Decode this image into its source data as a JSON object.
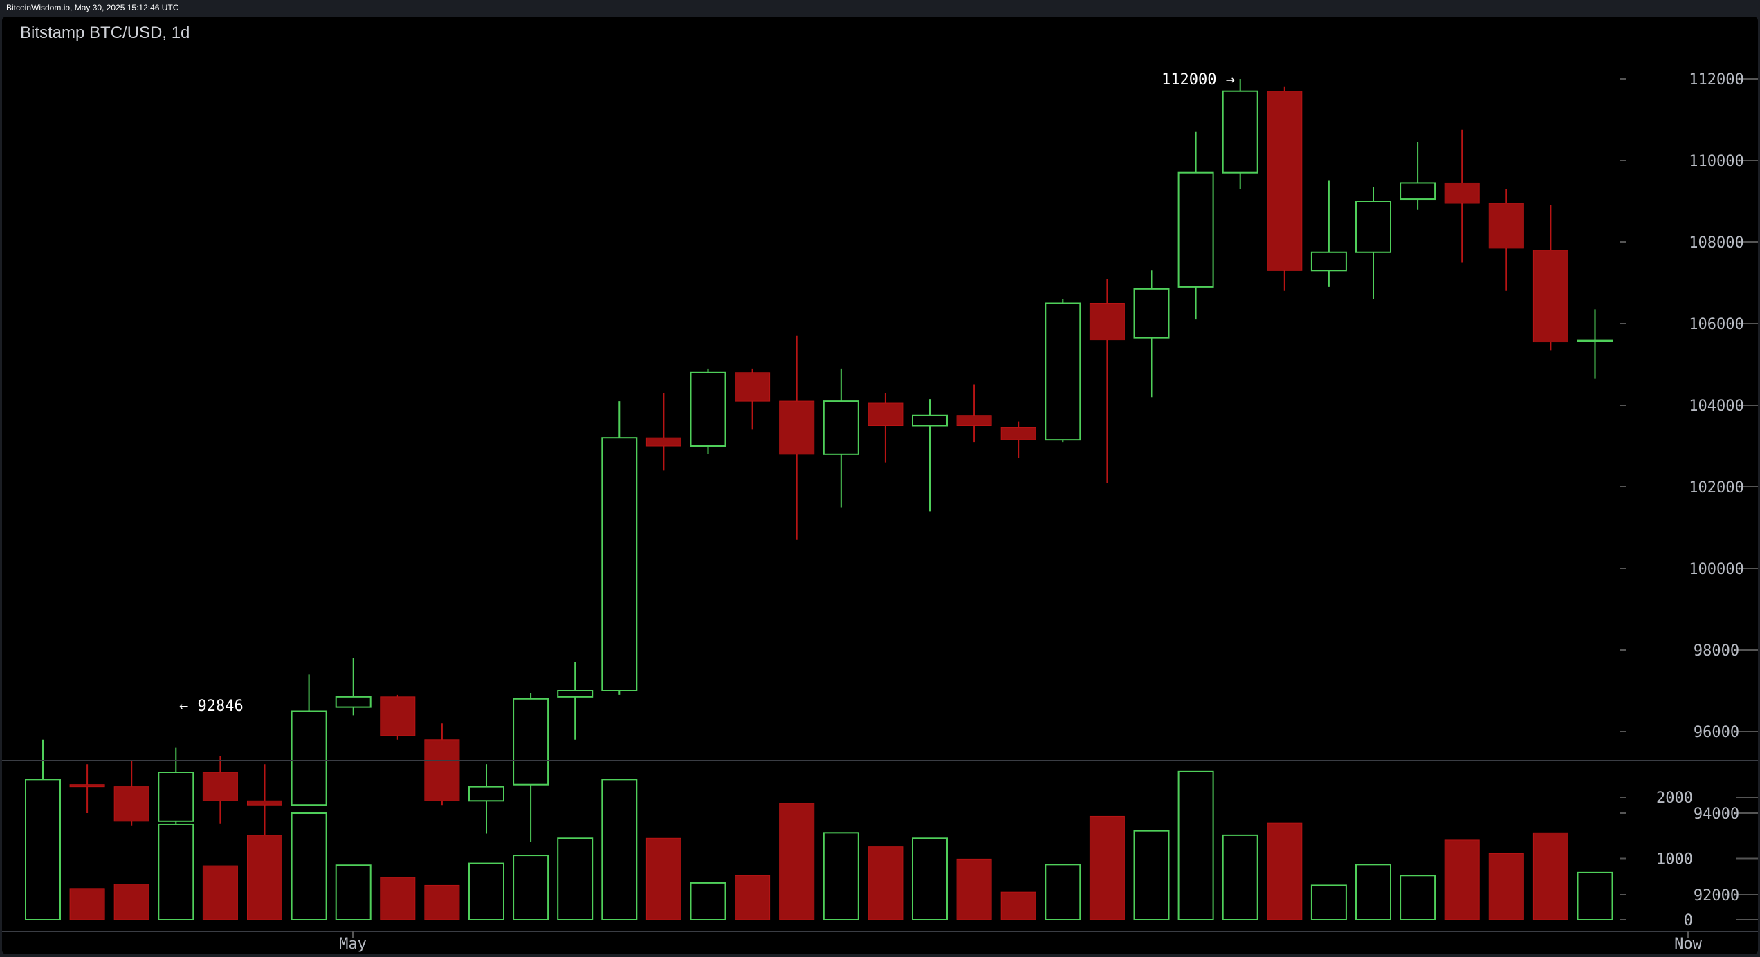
{
  "header": {
    "watermark": "BitcoinWisdom.io, May 30, 2025 15:12:46 UTC",
    "title": "Bitstamp BTC/USD, 1d"
  },
  "colors": {
    "up": "#4fcf5a",
    "down": "#9c1010",
    "background": "#000000",
    "axis_text": "#b8bcc4"
  },
  "chart_data": [
    {
      "type": "candlestick",
      "title": "Bitstamp BTC/USD, 1d",
      "ylim": [
        91000,
        113000
      ],
      "y_ticks": [
        "112000",
        "110000",
        "108000",
        "106000",
        "104000",
        "102000",
        "100000",
        "98000",
        "96000",
        "94000",
        "92000"
      ],
      "annotations": {
        "high": "112000 →",
        "low": "← 92846"
      },
      "x_labels": [
        "May",
        "Now"
      ],
      "candles": [
        {
          "o": 94000,
          "h": 95800,
          "l": 92900,
          "c": 94700
        },
        {
          "o": 94700,
          "h": 95200,
          "l": 94000,
          "c": 94650
        },
        {
          "o": 94650,
          "h": 95300,
          "l": 93700,
          "c": 93800
        },
        {
          "o": 93800,
          "h": 95600,
          "l": 92846,
          "c": 95000
        },
        {
          "o": 95000,
          "h": 95400,
          "l": 93750,
          "c": 94300
        },
        {
          "o": 94300,
          "h": 95200,
          "l": 92900,
          "c": 94200
        },
        {
          "o": 94200,
          "h": 97400,
          "l": 94200,
          "c": 96500
        },
        {
          "o": 96600,
          "h": 97800,
          "l": 96400,
          "c": 96850
        },
        {
          "o": 96850,
          "h": 96900,
          "l": 95800,
          "c": 95900
        },
        {
          "o": 95800,
          "h": 96200,
          "l": 94200,
          "c": 94300
        },
        {
          "o": 94300,
          "h": 95200,
          "l": 93500,
          "c": 94650
        },
        {
          "o": 94700,
          "h": 96950,
          "l": 93300,
          "c": 96800
        },
        {
          "o": 96850,
          "h": 97700,
          "l": 95800,
          "c": 97000
        },
        {
          "o": 97000,
          "h": 104100,
          "l": 96900,
          "c": 103200
        },
        {
          "o": 103200,
          "h": 104300,
          "l": 102400,
          "c": 103000
        },
        {
          "o": 103000,
          "h": 104900,
          "l": 102800,
          "c": 104800
        },
        {
          "o": 104800,
          "h": 104900,
          "l": 103400,
          "c": 104100
        },
        {
          "o": 104100,
          "h": 105700,
          "l": 100700,
          "c": 102800
        },
        {
          "o": 102800,
          "h": 104900,
          "l": 101500,
          "c": 104100
        },
        {
          "o": 104050,
          "h": 104300,
          "l": 102600,
          "c": 103500
        },
        {
          "o": 103500,
          "h": 104150,
          "l": 101400,
          "c": 103750
        },
        {
          "o": 103750,
          "h": 104500,
          "l": 103100,
          "c": 103500
        },
        {
          "o": 103450,
          "h": 103600,
          "l": 102700,
          "c": 103150
        },
        {
          "o": 103150,
          "h": 106600,
          "l": 103100,
          "c": 106500
        },
        {
          "o": 106500,
          "h": 107100,
          "l": 102100,
          "c": 105600
        },
        {
          "o": 105650,
          "h": 107300,
          "l": 104200,
          "c": 106850
        },
        {
          "o": 106900,
          "h": 110700,
          "l": 106100,
          "c": 109700
        },
        {
          "o": 109700,
          "h": 112000,
          "l": 109300,
          "c": 111700
        },
        {
          "o": 111700,
          "h": 111800,
          "l": 106800,
          "c": 107300
        },
        {
          "o": 107300,
          "h": 109500,
          "l": 106900,
          "c": 107750
        },
        {
          "o": 107750,
          "h": 109350,
          "l": 106600,
          "c": 109000
        },
        {
          "o": 109050,
          "h": 110450,
          "l": 108800,
          "c": 109450
        },
        {
          "o": 109450,
          "h": 110750,
          "l": 107500,
          "c": 108950
        },
        {
          "o": 108950,
          "h": 109300,
          "l": 106800,
          "c": 107850
        },
        {
          "o": 107800,
          "h": 108900,
          "l": 105350,
          "c": 105550
        },
        {
          "o": 105600,
          "h": 106350,
          "l": 104650,
          "c": 105600
        }
      ]
    },
    {
      "type": "bar",
      "title": "",
      "ylim": [
        0,
        2560
      ],
      "y_ticks": [
        "2000",
        "1000",
        "0"
      ],
      "values": [
        2290,
        510,
        580,
        1560,
        880,
        1380,
        1740,
        890,
        690,
        560,
        920,
        1050,
        1330,
        2290,
        1330,
        600,
        720,
        1900,
        1420,
        1190,
        1330,
        990,
        450,
        900,
        1690,
        1450,
        2420,
        1380,
        1580,
        560,
        900,
        720,
        1300,
        1080,
        1420,
        770
      ]
    }
  ]
}
